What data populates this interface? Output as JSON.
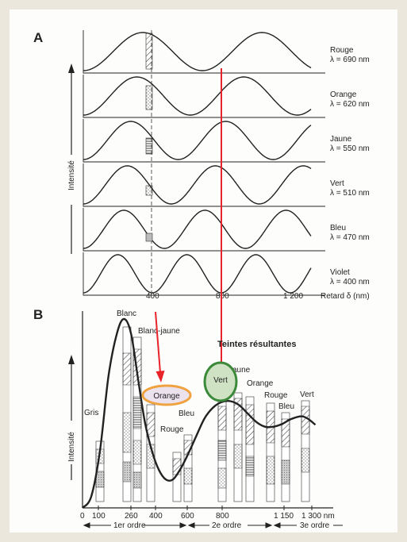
{
  "panel_a": {
    "letter": "A",
    "y_label": "Intensité",
    "x_label": "Retard δ (nm)",
    "ticks": [
      "400",
      "800",
      "1 200"
    ],
    "waves": [
      {
        "name": "Rouge",
        "lambda": "λ = 690 nm",
        "period_nm": 690
      },
      {
        "name": "Orange",
        "lambda": "λ = 620 nm",
        "period_nm": 620
      },
      {
        "name": "Jaune",
        "lambda": "λ = 550 nm",
        "period_nm": 550
      },
      {
        "name": "Vert",
        "lambda": "λ = 510 nm",
        "period_nm": 510
      },
      {
        "name": "Bleu",
        "lambda": "λ = 470 nm",
        "period_nm": 470
      },
      {
        "name": "Violet",
        "lambda": "λ = 400 nm",
        "period_nm": 400
      }
    ]
  },
  "panel_b": {
    "letter": "B",
    "y_label": "Intensité",
    "title": "Teintes résultantes",
    "labels": {
      "blanc": "Blanc",
      "blanc_jaune": "Blanc-jaune",
      "gris": "Gris",
      "orange1": "Orange",
      "bleu1": "Bleu",
      "rouge1": "Rouge",
      "jaune": "Jaune",
      "vert1": "Vert",
      "orange2": "Orange",
      "rouge2": "Rouge",
      "bleu2": "Bleu",
      "vert2": "Vert"
    },
    "ticks": [
      "0",
      "100",
      "260",
      "400",
      "600",
      "800",
      "1 150",
      "1 300 nm"
    ],
    "orders": [
      "1er ordre",
      "2e ordre",
      "3e ordre"
    ],
    "curve_points": [
      [
        0,
        0.0
      ],
      [
        50,
        0.06
      ],
      [
        100,
        0.3
      ],
      [
        150,
        0.7
      ],
      [
        200,
        0.93
      ],
      [
        240,
        1.0
      ],
      [
        280,
        0.92
      ],
      [
        320,
        0.68
      ],
      [
        360,
        0.45
      ],
      [
        400,
        0.3
      ],
      [
        440,
        0.2
      ],
      [
        480,
        0.15
      ],
      [
        520,
        0.15
      ],
      [
        560,
        0.2
      ],
      [
        600,
        0.27
      ],
      [
        650,
        0.37
      ],
      [
        700,
        0.47
      ],
      [
        750,
        0.53
      ],
      [
        800,
        0.56
      ],
      [
        850,
        0.565
      ],
      [
        900,
        0.545
      ],
      [
        950,
        0.5
      ],
      [
        1000,
        0.455
      ],
      [
        1050,
        0.43
      ],
      [
        1100,
        0.43
      ],
      [
        1150,
        0.445
      ],
      [
        1200,
        0.47
      ],
      [
        1260,
        0.485
      ],
      [
        1300,
        0.47
      ],
      [
        1340,
        0.44
      ]
    ]
  },
  "colors": {
    "arrow": "#e8232a",
    "orange_ellipse": "#f0a240",
    "vert_ellipse_fill": "#cfe2c4",
    "vert_ellipse_stroke": "#3a8a3a",
    "orange_fill": "#ece2ee"
  }
}
